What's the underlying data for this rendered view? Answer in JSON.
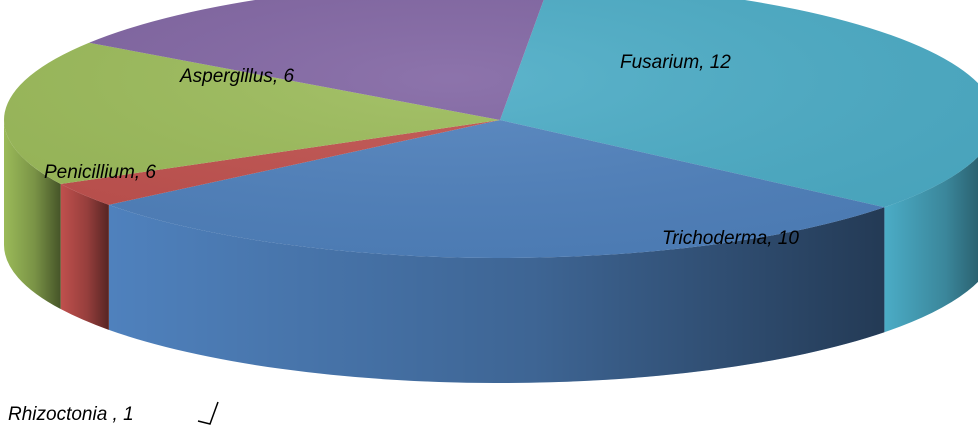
{
  "chart_data": {
    "type": "pie",
    "style": "3d",
    "title": "",
    "slices": [
      {
        "name": "Fusarium",
        "value": 12,
        "label": "Fusarium, 12",
        "color": "#4BACC6"
      },
      {
        "name": "Trichoderma",
        "value": 10,
        "label": "Trichoderma, 10",
        "color": "#4F81BD"
      },
      {
        "name": "Rhizoctonia",
        "value": 1,
        "label": "Rhizoctonia , 1",
        "color": "#C0504D"
      },
      {
        "name": "Penicillium",
        "value": 6,
        "label": "Penicillium, 6",
        "color": "#9BBB59"
      },
      {
        "name": "Aspergillus",
        "value": 6,
        "label": "Aspergillus, 6",
        "color": "#8064A2"
      }
    ],
    "legend": "none",
    "label_position": "inside"
  }
}
